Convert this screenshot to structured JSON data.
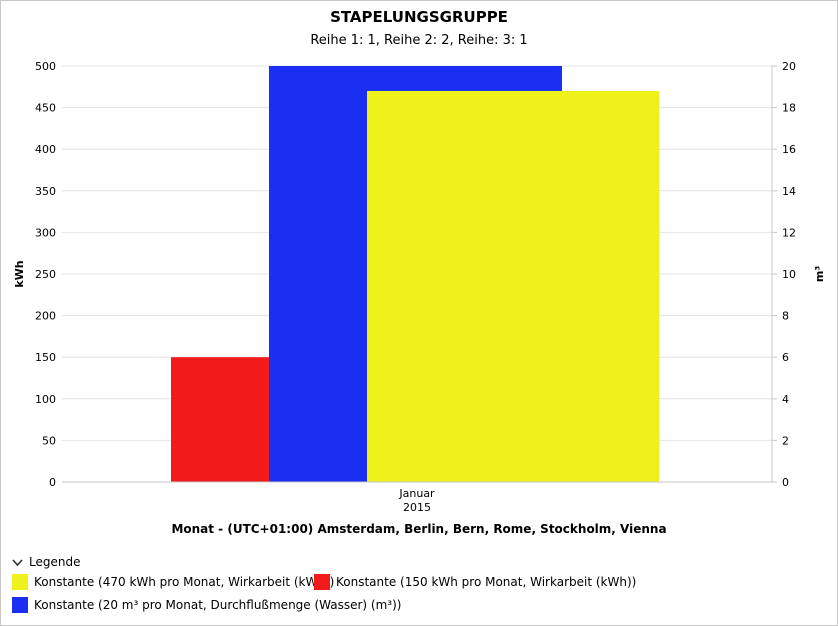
{
  "colors": {
    "yellow": "#eef21a",
    "red": "#f21a1a",
    "blue": "#1a2ff2",
    "grid": "#e4e4e4"
  },
  "legend": {
    "toggle_label": "Legende",
    "items": [
      {
        "label": "Konstante (470 kWh pro Monat, Wirkarbeit (kWh))",
        "color": "#eef21a"
      },
      {
        "label": "Konstante (150 kWh pro Monat, Wirkarbeit (kWh))",
        "color": "#f21a1a"
      },
      {
        "label": "Konstante (20 m³ pro Monat, Durchflußmenge (Wasser) (m³))",
        "color": "#1a2ff2"
      }
    ]
  },
  "chart_data": {
    "type": "bar",
    "title": "STAPELUNGSGRUPPE",
    "subtitle": "Reihe 1: 1, Reihe 2: 2, Reihe: 3: 1",
    "categories": [
      "Januar 2015"
    ],
    "category_lines": [
      "Januar",
      "2015"
    ],
    "xlabel": "Monat - (UTC+01:00) Amsterdam, Berlin, Bern, Rome, Stockholm, Vienna",
    "ylabel": "kWh",
    "y2label": "m³",
    "ylim": [
      0,
      500
    ],
    "y2lim": [
      0,
      20
    ],
    "yticks": [
      "0",
      "50",
      "100",
      "150",
      "200",
      "250",
      "300",
      "350",
      "400",
      "450",
      "500"
    ],
    "y2ticks": [
      "0",
      "2",
      "4",
      "6",
      "8",
      "10",
      "12",
      "14",
      "16",
      "18",
      "20"
    ],
    "grid": true,
    "legend_position": "bottom-left",
    "series": [
      {
        "name": "Konstante (150 kWh pro Monat, Wirkarbeit (kWh))",
        "values": [
          150
        ],
        "axis": "left",
        "color": "#f21a1a"
      },
      {
        "name": "Konstante (20 m³ pro Monat, Durchflußmenge (Wasser) (m³))",
        "values": [
          20
        ],
        "axis": "right",
        "color": "#1a2ff2"
      },
      {
        "name": "Konstante (470 kWh pro Monat, Wirkarbeit (kWh))",
        "values": [
          470
        ],
        "axis": "left",
        "color": "#eef21a"
      }
    ]
  }
}
